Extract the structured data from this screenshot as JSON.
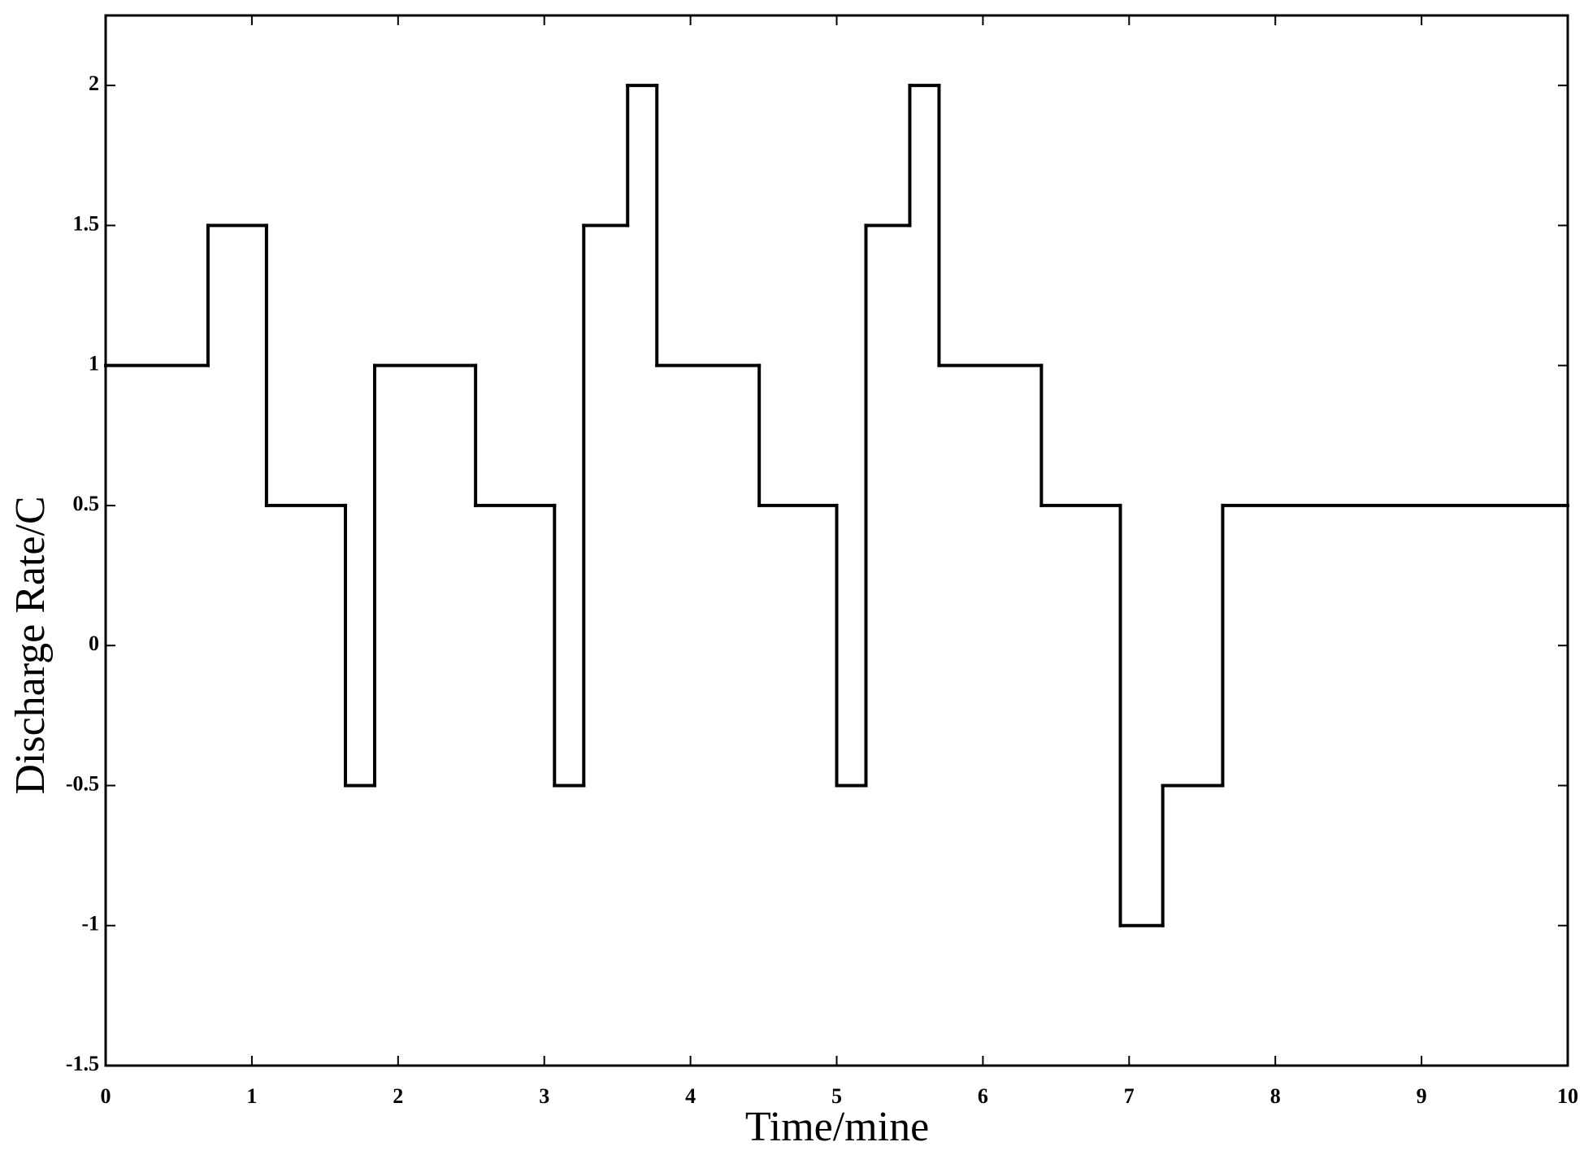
{
  "chart_data": {
    "type": "line",
    "step": "post",
    "xlabel": "Time/mine",
    "ylabel": "Discharge Rate/C",
    "x": [
      0,
      0.7,
      1.1,
      1.64,
      1.84,
      2.53,
      3.07,
      3.27,
      3.57,
      3.77,
      4.47,
      5.0,
      5.2,
      5.5,
      5.7,
      6.4,
      6.94,
      7.23,
      7.64,
      10
    ],
    "values": [
      1,
      1.5,
      0.5,
      -0.5,
      1,
      0.5,
      -0.5,
      1.5,
      2,
      1,
      0.5,
      -0.5,
      1.5,
      2,
      1,
      0.5,
      -1,
      -0.5,
      0.5,
      0.5
    ],
    "color": "#000000",
    "xlim": [
      0,
      10
    ],
    "xticks": [
      0,
      1,
      2,
      3,
      4,
      5,
      6,
      7,
      8,
      9,
      10
    ],
    "ylim": [
      -1.5,
      2.25
    ],
    "yticks": [
      -1.5,
      -1,
      -0.5,
      0,
      0.5,
      1,
      1.5,
      2
    ],
    "grid": false
  }
}
